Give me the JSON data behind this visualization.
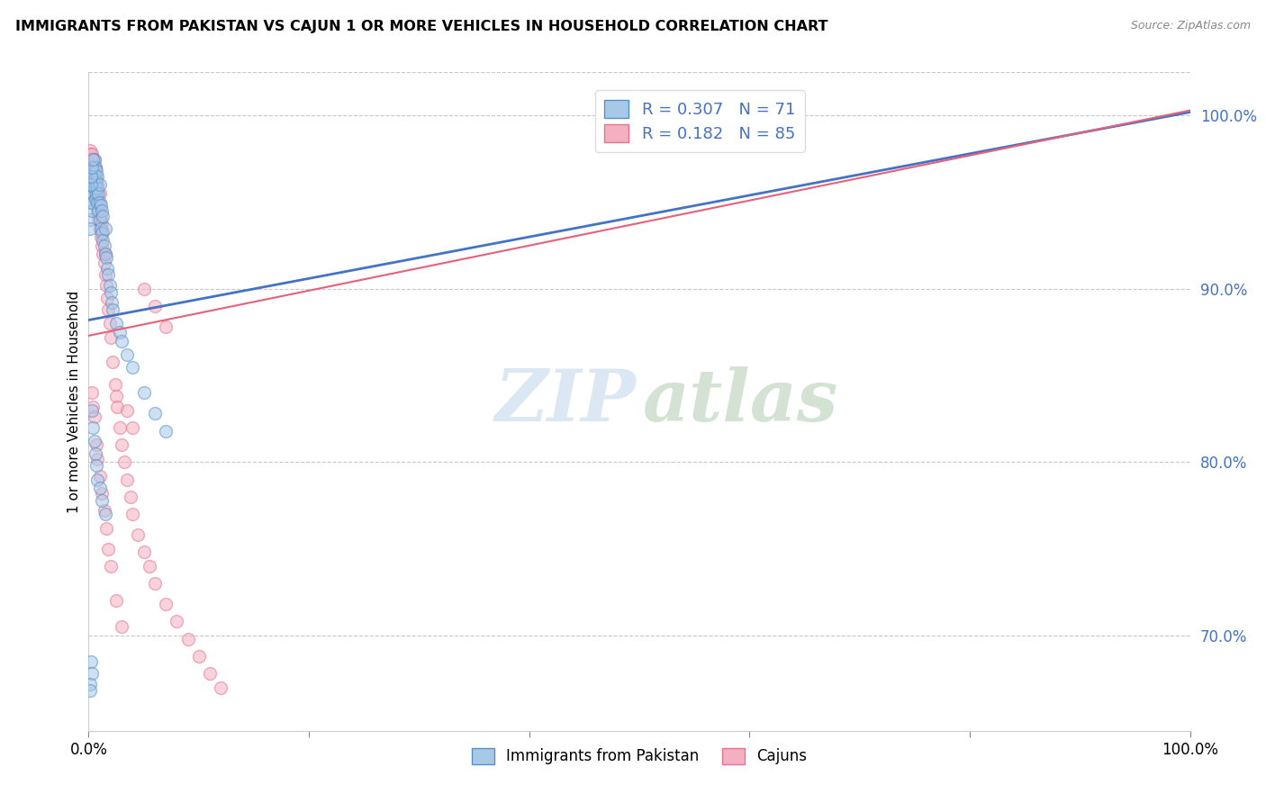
{
  "title": "IMMIGRANTS FROM PAKISTAN VS CAJUN 1 OR MORE VEHICLES IN HOUSEHOLD CORRELATION CHART",
  "source": "Source: ZipAtlas.com",
  "ylabel": "1 or more Vehicles in Household",
  "ylabel_right_ticks": [
    "70.0%",
    "80.0%",
    "90.0%",
    "100.0%"
  ],
  "ytick_vals": [
    0.7,
    0.8,
    0.9,
    1.0
  ],
  "legend_line1": "R = 0.307   N = 71",
  "legend_line2": "R = 0.182   N = 85",
  "blue_line_color": "#4472c4",
  "pink_line_color": "#e8607a",
  "blue_dot_facecolor": "#a8c8e8",
  "blue_dot_edgecolor": "#5590c8",
  "pink_dot_facecolor": "#f4b0c0",
  "pink_dot_edgecolor": "#e87090",
  "dot_size": 100,
  "dot_alpha": 0.55,
  "grid_color": "#c8c8c8",
  "background_color": "#ffffff",
  "xlim": [
    0.0,
    1.0
  ],
  "ylim": [
    0.645,
    1.025
  ],
  "blue_scatter_x": [
    0.001,
    0.001,
    0.002,
    0.002,
    0.002,
    0.003,
    0.003,
    0.003,
    0.004,
    0.004,
    0.004,
    0.005,
    0.005,
    0.005,
    0.005,
    0.006,
    0.006,
    0.006,
    0.006,
    0.007,
    0.007,
    0.007,
    0.008,
    0.008,
    0.008,
    0.009,
    0.009,
    0.01,
    0.01,
    0.01,
    0.011,
    0.011,
    0.012,
    0.012,
    0.013,
    0.013,
    0.014,
    0.015,
    0.015,
    0.016,
    0.017,
    0.018,
    0.019,
    0.02,
    0.021,
    0.022,
    0.025,
    0.028,
    0.03,
    0.035,
    0.04,
    0.05,
    0.06,
    0.07,
    0.003,
    0.004,
    0.005,
    0.006,
    0.007,
    0.008,
    0.01,
    0.012,
    0.015,
    0.002,
    0.003,
    0.001,
    0.001,
    0.002,
    0.002,
    0.003,
    0.004
  ],
  "blue_scatter_y": [
    0.94,
    0.935,
    0.95,
    0.955,
    0.96,
    0.945,
    0.95,
    0.96,
    0.955,
    0.962,
    0.968,
    0.958,
    0.963,
    0.97,
    0.975,
    0.952,
    0.96,
    0.965,
    0.97,
    0.955,
    0.962,
    0.968,
    0.95,
    0.958,
    0.965,
    0.945,
    0.955,
    0.94,
    0.95,
    0.96,
    0.935,
    0.948,
    0.932,
    0.945,
    0.928,
    0.942,
    0.925,
    0.92,
    0.935,
    0.918,
    0.912,
    0.908,
    0.902,
    0.898,
    0.892,
    0.888,
    0.88,
    0.875,
    0.87,
    0.862,
    0.855,
    0.84,
    0.828,
    0.818,
    0.83,
    0.82,
    0.812,
    0.805,
    0.798,
    0.79,
    0.785,
    0.778,
    0.77,
    0.685,
    0.678,
    0.672,
    0.668,
    0.96,
    0.965,
    0.97,
    0.975
  ],
  "pink_scatter_x": [
    0.001,
    0.001,
    0.001,
    0.002,
    0.002,
    0.002,
    0.003,
    0.003,
    0.003,
    0.003,
    0.004,
    0.004,
    0.004,
    0.004,
    0.005,
    0.005,
    0.005,
    0.005,
    0.006,
    0.006,
    0.006,
    0.006,
    0.007,
    0.007,
    0.007,
    0.008,
    0.008,
    0.008,
    0.009,
    0.009,
    0.01,
    0.01,
    0.01,
    0.011,
    0.011,
    0.012,
    0.012,
    0.013,
    0.013,
    0.014,
    0.015,
    0.015,
    0.016,
    0.017,
    0.018,
    0.019,
    0.02,
    0.022,
    0.024,
    0.025,
    0.026,
    0.028,
    0.03,
    0.032,
    0.035,
    0.038,
    0.04,
    0.045,
    0.05,
    0.055,
    0.06,
    0.07,
    0.08,
    0.09,
    0.1,
    0.11,
    0.12,
    0.003,
    0.004,
    0.005,
    0.007,
    0.008,
    0.01,
    0.012,
    0.014,
    0.016,
    0.018,
    0.02,
    0.025,
    0.03,
    0.035,
    0.04,
    0.05,
    0.06,
    0.07
  ],
  "pink_scatter_y": [
    0.97,
    0.975,
    0.98,
    0.965,
    0.97,
    0.978,
    0.96,
    0.965,
    0.972,
    0.978,
    0.958,
    0.963,
    0.97,
    0.975,
    0.955,
    0.96,
    0.968,
    0.974,
    0.952,
    0.958,
    0.965,
    0.97,
    0.948,
    0.955,
    0.962,
    0.944,
    0.952,
    0.96,
    0.94,
    0.95,
    0.935,
    0.945,
    0.955,
    0.93,
    0.942,
    0.925,
    0.938,
    0.92,
    0.933,
    0.915,
    0.908,
    0.92,
    0.902,
    0.895,
    0.888,
    0.88,
    0.872,
    0.858,
    0.845,
    0.838,
    0.832,
    0.82,
    0.81,
    0.8,
    0.79,
    0.78,
    0.77,
    0.758,
    0.748,
    0.74,
    0.73,
    0.718,
    0.708,
    0.698,
    0.688,
    0.678,
    0.67,
    0.84,
    0.832,
    0.826,
    0.81,
    0.802,
    0.792,
    0.782,
    0.772,
    0.762,
    0.75,
    0.74,
    0.72,
    0.705,
    0.83,
    0.82,
    0.9,
    0.89,
    0.878
  ],
  "blue_trendline_x": [
    0.0,
    1.0
  ],
  "blue_trendline_y": [
    0.882,
    1.002
  ],
  "pink_trendline_x": [
    0.0,
    1.0
  ],
  "pink_trendline_y": [
    0.873,
    1.003
  ]
}
